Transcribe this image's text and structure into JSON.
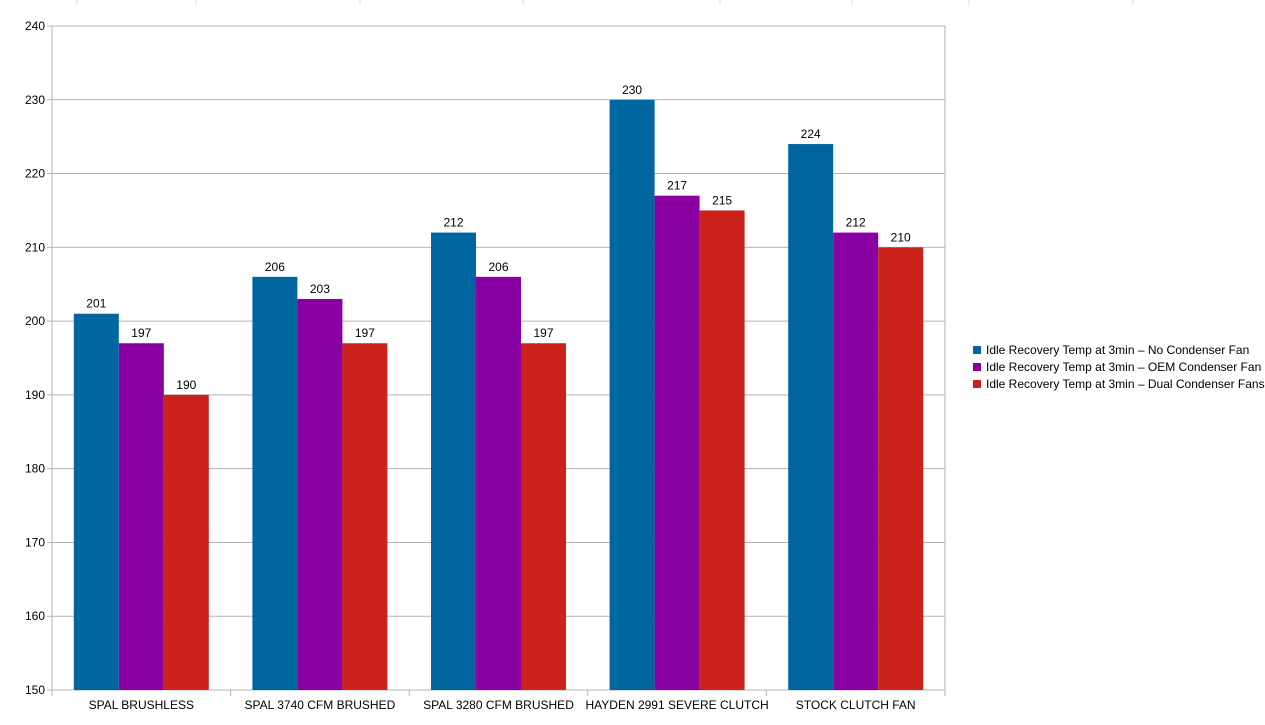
{
  "chart_data": {
    "type": "bar",
    "title": "",
    "xlabel": "",
    "ylabel": "",
    "ylim": [
      150,
      240
    ],
    "yticks": [
      150,
      160,
      170,
      180,
      190,
      200,
      210,
      220,
      230,
      240
    ],
    "grid": true,
    "legend_position": "right",
    "categories": [
      "SPAL BRUSHLESS",
      "SPAL 3740 CFM BRUSHED",
      "SPAL 3280 CFM BRUSHED",
      "HAYDEN 2991 SEVERE CLUTCH",
      "STOCK CLUTCH FAN"
    ],
    "series": [
      {
        "name": "Idle Recovery Temp at 3min – No Condenser Fan",
        "color": "#0066a0",
        "values": [
          201,
          206,
          212,
          230,
          224
        ]
      },
      {
        "name": "Idle Recovery Temp at 3min – OEM Condenser Fan",
        "color": "#8b00a3",
        "values": [
          197,
          203,
          206,
          217,
          212
        ]
      },
      {
        "name": "Idle Recovery Temp at 3min – Dual Condenser Fans",
        "color": "#cc221c",
        "values": [
          190,
          197,
          197,
          215,
          210
        ]
      }
    ]
  }
}
